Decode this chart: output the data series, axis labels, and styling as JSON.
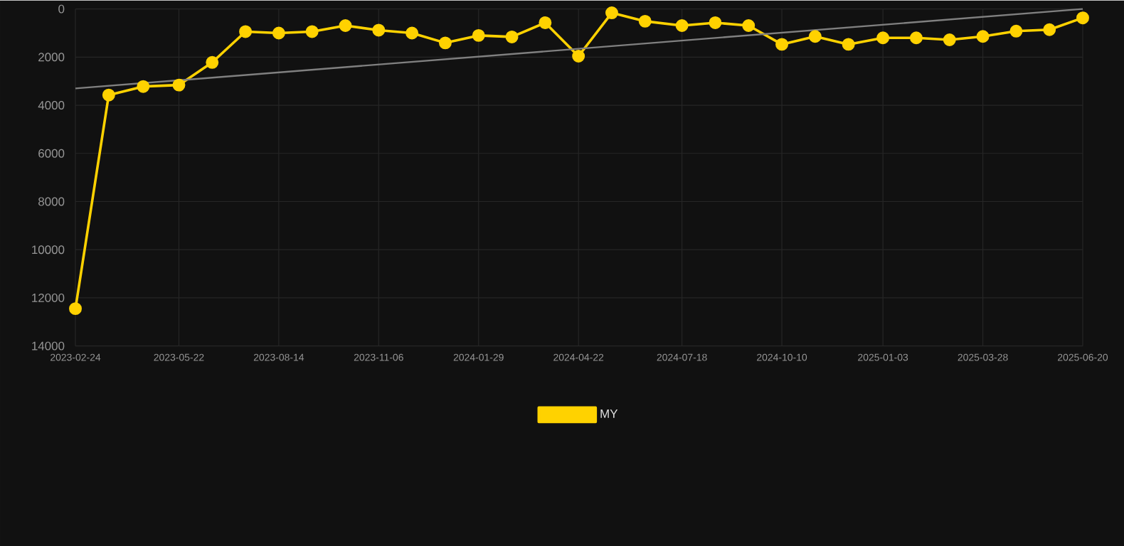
{
  "chart_data": {
    "type": "line",
    "x": [
      "2023-02-24",
      "2023-03-24",
      "2023-04-22",
      "2023-05-22",
      "2023-06-19",
      "2023-07-17",
      "2023-08-14",
      "2023-09-11",
      "2023-10-09",
      "2023-11-06",
      "2023-12-04",
      "2024-01-01",
      "2024-01-29",
      "2024-02-26",
      "2024-03-25",
      "2024-04-22",
      "2024-05-20",
      "2024-06-17",
      "2024-07-18",
      "2024-08-15",
      "2024-09-12",
      "2024-10-10",
      "2024-11-07",
      "2024-12-05",
      "2025-01-03",
      "2025-01-31",
      "2025-02-28",
      "2025-03-28",
      "2025-04-25",
      "2025-05-23",
      "2025-06-20"
    ],
    "series": [
      {
        "name": "MY",
        "color": "#ffd200",
        "values": [
          12450,
          3575,
          3220,
          3160,
          2220,
          940,
          1000,
          940,
          690,
          880,
          1000,
          1410,
          1100,
          1160,
          570,
          1960,
          160,
          510,
          690,
          570,
          690,
          1470,
          1140,
          1470,
          1200,
          1200,
          1280,
          1140,
          920,
          860,
          370
        ]
      },
      {
        "type": "line",
        "color": "#808080",
        "marker": "none",
        "x": [
          "2023-02-24",
          "2025-06-20"
        ],
        "values": [
          3300,
          0
        ]
      }
    ],
    "xlim": [
      "2023-02-24",
      "2025-06-20"
    ],
    "xticks": [
      "2023-02-24",
      "2023-05-22",
      "2023-08-14",
      "2023-11-06",
      "2024-01-29",
      "2024-04-22",
      "2024-07-18",
      "2024-10-10",
      "2025-01-03",
      "2025-03-28",
      "2025-06-20"
    ],
    "ylim": [
      14000,
      0
    ],
    "yticks": [
      0,
      2000,
      4000,
      6000,
      8000,
      10000,
      12000,
      14000
    ],
    "grid": true,
    "legend": "bottom",
    "marker": "circle",
    "line_style": "solid"
  }
}
